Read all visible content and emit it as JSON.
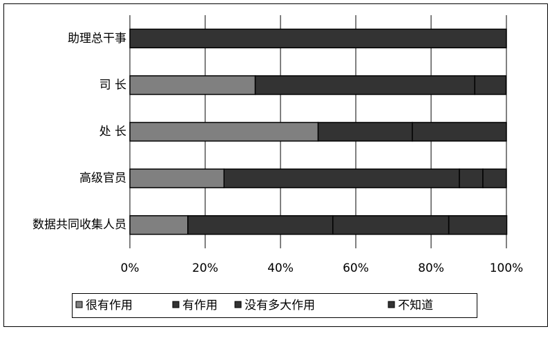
{
  "chart_data": {
    "type": "stacked-bar-horizontal",
    "categories": [
      "助理总干事",
      "司 长",
      "处 长",
      "高级官员",
      "数据共同收集人员"
    ],
    "series": [
      {
        "name": "很有作用",
        "color": "#808080",
        "values": [
          0,
          33.3,
          50,
          25,
          15.4
        ]
      },
      {
        "name": "有作用",
        "color": "#333333",
        "values": [
          100,
          58.3,
          25,
          62.5,
          38.5
        ]
      },
      {
        "name": "没有多大作用",
        "color": "#333333",
        "values": [
          0,
          0,
          25,
          6.25,
          30.8
        ]
      },
      {
        "name": "不知道",
        "color": "#333333",
        "values": [
          0,
          8.3,
          0,
          6.25,
          15.4
        ]
      }
    ],
    "xlim": [
      0,
      100
    ],
    "xticks": [
      {
        "value": 0,
        "label": "0%"
      },
      {
        "value": 20,
        "label": "20%"
      },
      {
        "value": 40,
        "label": "40%"
      },
      {
        "value": 60,
        "label": "60%"
      },
      {
        "value": 80,
        "label": "80%"
      },
      {
        "value": 100,
        "label": "100%"
      }
    ],
    "grid": true
  }
}
